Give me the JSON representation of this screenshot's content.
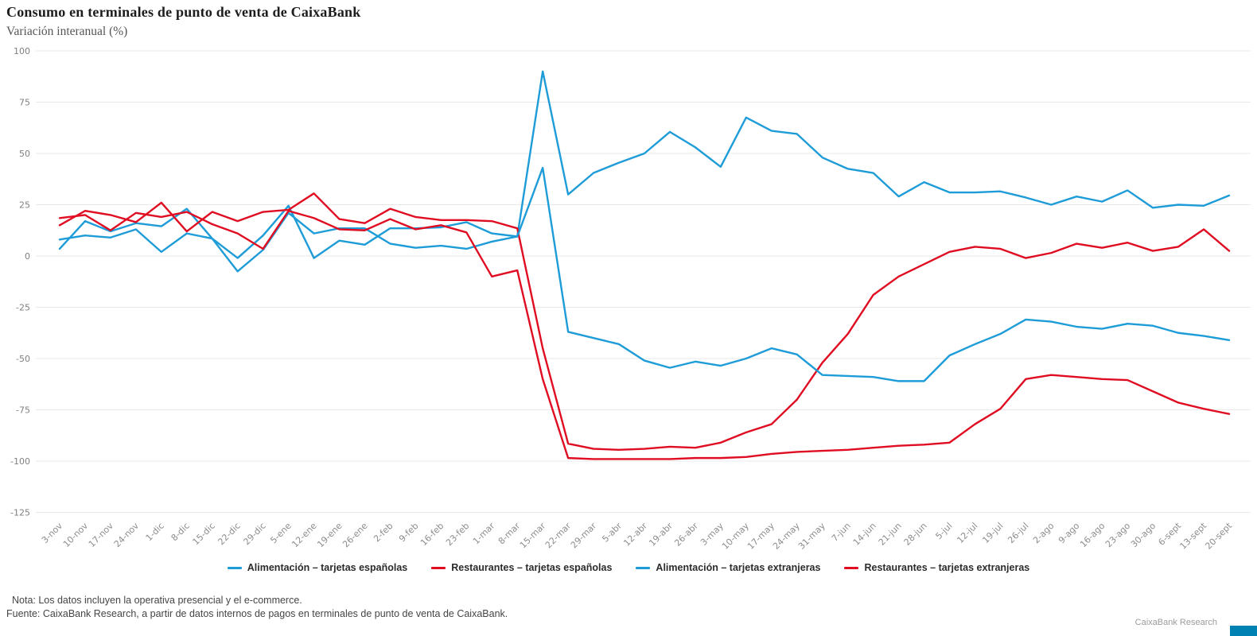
{
  "page": {
    "title": "Consumo en terminales de punto de venta de CaixaBank",
    "subtitle": "Variación interanual (%)",
    "note_line1": "Nota: Los datos incluyen la operativa presencial y el e-commerce.",
    "note_line2": "Fuente: CaixaBank Research, a partir de datos internos de pagos en terminales de punto de venta de CaixaBank.",
    "watermark": "CaixaBank Research",
    "brand_color": "#0081b4",
    "grid_color": "#e8e8e8"
  },
  "chart_data": {
    "type": "line",
    "title": "Consumo en terminales de punto de venta de CaixaBank",
    "subtitle": "Variación interanual (%)",
    "ylabel": "Variación interanual (%)",
    "ylim": [
      -125,
      100
    ],
    "y_ticks": [
      100,
      75,
      50,
      25,
      0,
      -25,
      -50,
      -75,
      -100,
      -125
    ],
    "grid": "horizontal",
    "legend_position": "bottom",
    "categories": [
      "3-nov",
      "10-nov",
      "17-nov",
      "24-nov",
      "1-dic",
      "8-dic",
      "15-dic",
      "22-dic",
      "29-dic",
      "5-ene",
      "12-ene",
      "19-ene",
      "26-ene",
      "2-feb",
      "9-feb",
      "16-feb",
      "23-feb",
      "1-mar",
      "8-mar",
      "15-mar",
      "22-mar",
      "29-mar",
      "5-abr",
      "12-abr",
      "19-abr",
      "26-abr",
      "3-may",
      "10-may",
      "17-may",
      "24-may",
      "31-may",
      "7-jun",
      "14-jun",
      "21-jun",
      "28-jun",
      "5-jul",
      "12-jul",
      "19-jul",
      "26-jul",
      "2-ago",
      "9-ago",
      "16-ago",
      "23-ago",
      "30-ago",
      "6-sept",
      "13-sept",
      "20-sept"
    ],
    "series": [
      {
        "id": "alimentacion-espanolas",
        "name": "Alimentación – tarjetas españolas",
        "color": "#1e9cd8",
        "values": [
          3.5,
          17,
          12,
          16,
          14.5,
          23,
          8.5,
          -1,
          10,
          24.5,
          -1,
          7.5,
          5.5,
          13.5,
          13.5,
          14,
          16.5,
          11,
          9.5,
          90,
          30,
          40.5,
          45.5,
          50,
          60.5,
          53,
          43.5,
          67.5,
          61,
          59.5,
          48,
          42.5,
          40.5,
          29,
          36,
          31,
          31,
          31.5,
          28.5,
          25,
          29,
          26.5,
          32,
          23.5,
          25,
          24.5,
          29.5
        ]
      },
      {
        "id": "restaurantes-espanolas",
        "name": "Restaurantes – tarjetas españolas",
        "color": "#e00d22",
        "values": [
          15,
          22,
          20,
          16.5,
          26,
          12,
          21.5,
          17,
          21.5,
          22.5,
          30.5,
          18,
          16,
          23,
          19,
          17.5,
          17.5,
          17,
          13.5,
          -45,
          -91.5,
          -94,
          -94.5,
          -94,
          -93,
          -93.5,
          -91,
          -86,
          -82,
          -70,
          -52,
          -38,
          -19,
          -10,
          -4,
          2,
          4.5,
          3.5,
          -1,
          1.5,
          6,
          4,
          6.5,
          2.5,
          4.5,
          13,
          2.5
        ]
      },
      {
        "id": "alimentacion-extranjeras",
        "name": "Alimentación – tarjetas extranjeras",
        "color": "#1e9cd8",
        "values": [
          8,
          10,
          9,
          13,
          2,
          11,
          8.5,
          -7.5,
          3,
          21,
          11,
          13.5,
          13.5,
          6,
          4,
          5,
          3.5,
          7,
          9.5,
          43,
          -37,
          -40,
          -43,
          -51,
          -54.5,
          -51.5,
          -53.5,
          -50,
          -45,
          -48,
          -58,
          -58.5,
          -59,
          -61,
          -61,
          -48.5,
          -43,
          -38,
          -31,
          -32,
          -34.5,
          -35.5,
          -33,
          -34,
          -37.5,
          -39,
          -41
        ]
      },
      {
        "id": "restaurantes-extranjeras",
        "name": "Restaurantes – tarjetas extranjeras",
        "color": "#e00d22",
        "values": [
          18.5,
          20,
          12.5,
          21,
          19,
          21.5,
          15.5,
          11,
          3.5,
          22,
          18.5,
          13,
          12.5,
          18,
          13,
          15,
          11.5,
          -10,
          -7,
          -60,
          -98.5,
          -99,
          -99,
          -99,
          -99,
          -98.5,
          -98.5,
          -98,
          -96.5,
          -95.5,
          -95,
          -94.5,
          -93.5,
          -92.5,
          -92,
          -91,
          -82,
          -74.5,
          -60,
          -58,
          -59,
          -60,
          -60.5,
          -66,
          -71.5,
          -74.5,
          -77
        ]
      }
    ]
  }
}
